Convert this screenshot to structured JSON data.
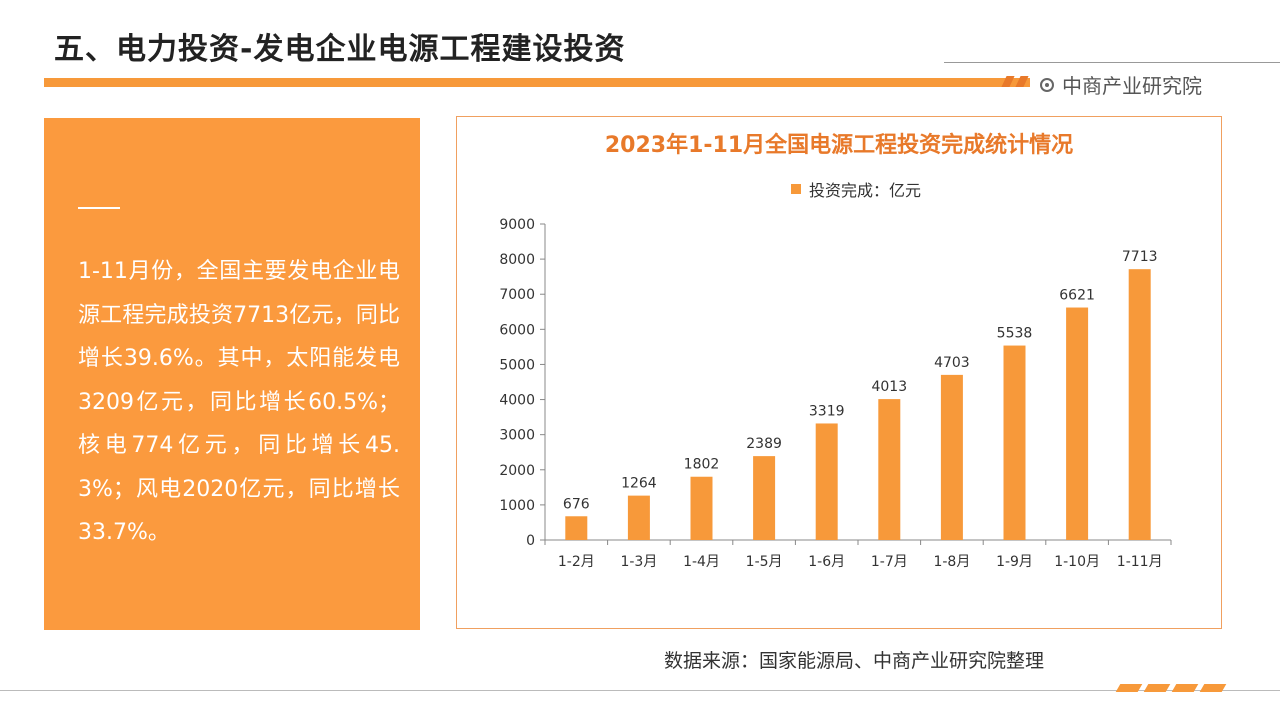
{
  "header": {
    "title": "五、电力投资-发电企业电源工程建设投资",
    "brand": "中商产业研究院"
  },
  "summary": {
    "text": "1-11月份，全国主要发电企业电源工程完成投资7713亿元，同比增长39.6%。其中，太阳能发电3209亿元，同比增长60.5%；核电774亿元，同比增长45.3%；风电2020亿元，同比增长33.7%。"
  },
  "chart_data": {
    "type": "bar",
    "title": "2023年1-11月全国电源工程投资完成统计情况",
    "xlabel": "",
    "ylabel": "",
    "categories": [
      "1-2月",
      "1-3月",
      "1-4月",
      "1-5月",
      "1-6月",
      "1-7月",
      "1-8月",
      "1-9月",
      "1-10月",
      "1-11月"
    ],
    "series": [
      {
        "name": "投资完成：亿元",
        "values": [
          676,
          1264,
          1802,
          2389,
          3319,
          4013,
          4703,
          5538,
          6621,
          7713
        ]
      }
    ],
    "ylim": [
      0,
      9000
    ],
    "yticks": [
      0,
      1000,
      2000,
      3000,
      4000,
      5000,
      6000,
      7000,
      8000,
      9000
    ],
    "legend": "top",
    "grid": false,
    "color": "#f7993a"
  },
  "footer": {
    "source": "数据来源：国家能源局、中商产业研究院整理"
  }
}
